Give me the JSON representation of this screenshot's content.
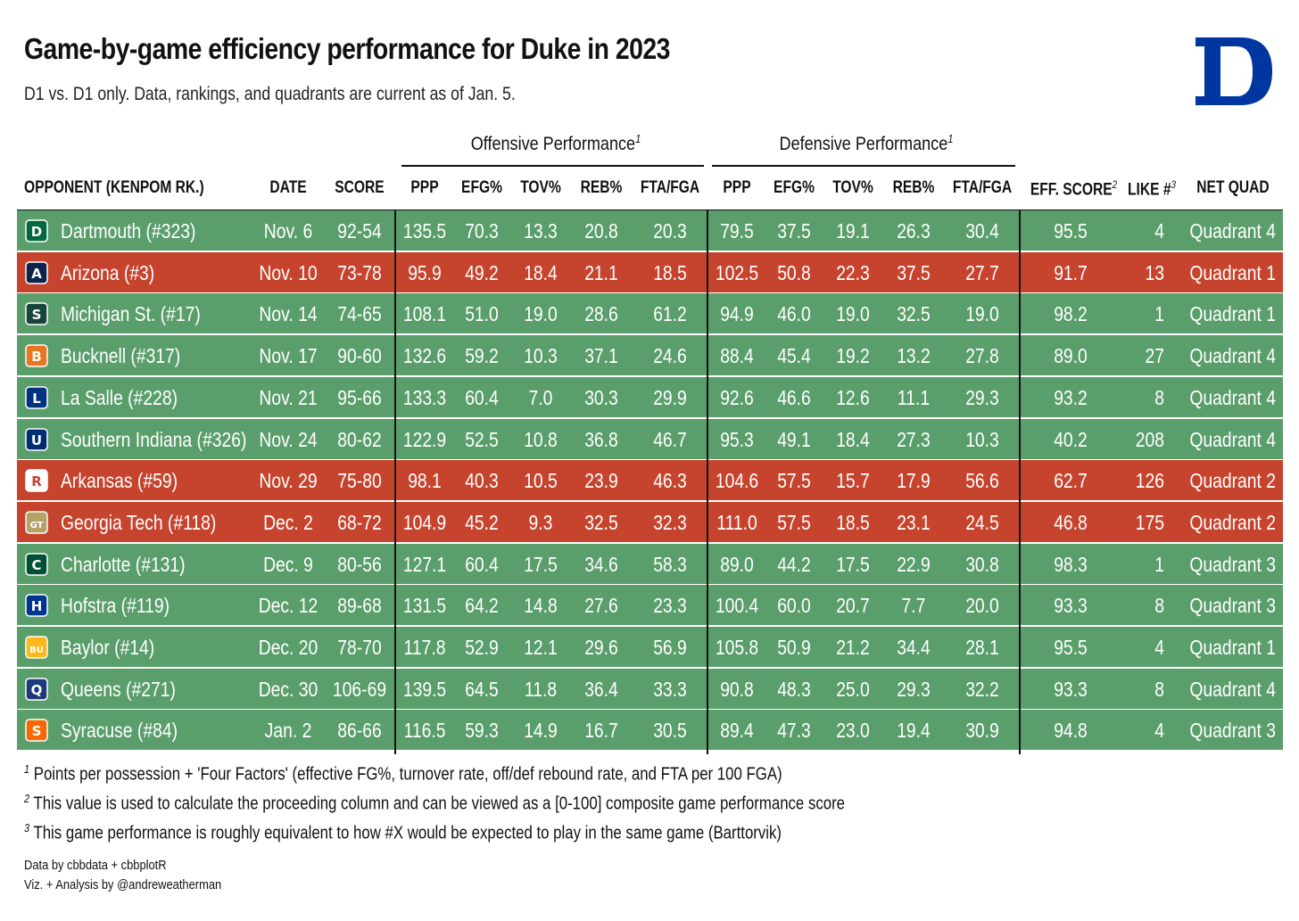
{
  "header": {
    "title": "Game-by-game efficiency performance for Duke in 2023",
    "subtitle": "D1 vs. D1 only. Data, rankings, and quadrants are current as of Jan. 5.",
    "logo_label": "Duke D logo"
  },
  "spanners": {
    "offense": "Offensive Performance",
    "defense": "Defensive Performance",
    "note_mark": "1"
  },
  "columns": {
    "opponent": "OPPONENT (KENPOM RK.)",
    "date": "DATE",
    "score": "SCORE",
    "o_ppp": "PPP",
    "o_efg": "EFG%",
    "o_tov": "TOV%",
    "o_reb": "REB%",
    "o_fta": "FTA/FGA",
    "d_ppp": "PPP",
    "d_efg": "EFG%",
    "d_tov": "TOV%",
    "d_reb": "REB%",
    "d_fta": "FTA/FGA",
    "eff": "EFF. SCORE",
    "eff_mark": "2",
    "like": "LIKE #",
    "like_mark": "3",
    "quad": "NET QUAD"
  },
  "colors": {
    "win": "#5a9e6b",
    "loss": "#c6442e",
    "duke_blue": "#00369f"
  },
  "rows": [
    {
      "opponent": "Dartmouth (#323)",
      "date": "Nov. 6",
      "score": "92-54",
      "o_ppp": "135.5",
      "o_efg": "70.3",
      "o_tov": "13.3",
      "o_reb": "20.8",
      "o_fta": "20.3",
      "d_ppp": "79.5",
      "d_efg": "37.5",
      "d_tov": "19.1",
      "d_reb": "26.3",
      "d_fta": "30.4",
      "eff": "95.5",
      "like": "4",
      "quad": "Quadrant 4",
      "result": "win",
      "logo_icon": "dartmouth-logo",
      "logo_color": "#00693e",
      "logo_glyph": "D"
    },
    {
      "opponent": "Arizona (#3)",
      "date": "Nov. 10",
      "score": "73-78",
      "o_ppp": "95.9",
      "o_efg": "49.2",
      "o_tov": "18.4",
      "o_reb": "21.1",
      "o_fta": "18.5",
      "d_ppp": "102.5",
      "d_efg": "50.8",
      "d_tov": "22.3",
      "d_reb": "37.5",
      "d_fta": "27.7",
      "eff": "91.7",
      "like": "13",
      "quad": "Quadrant 1",
      "result": "loss",
      "logo_icon": "arizona-logo",
      "logo_color": "#0c234b",
      "logo_glyph": "A"
    },
    {
      "opponent": "Michigan St. (#17)",
      "date": "Nov. 14",
      "score": "74-65",
      "o_ppp": "108.1",
      "o_efg": "51.0",
      "o_tov": "19.0",
      "o_reb": "28.6",
      "o_fta": "61.2",
      "d_ppp": "94.9",
      "d_efg": "46.0",
      "d_tov": "19.0",
      "d_reb": "32.5",
      "d_fta": "19.0",
      "eff": "98.2",
      "like": "1",
      "quad": "Quadrant 1",
      "result": "win",
      "logo_icon": "michigan-state-logo",
      "logo_color": "#18453b",
      "logo_glyph": "S"
    },
    {
      "opponent": "Bucknell (#317)",
      "date": "Nov. 17",
      "score": "90-60",
      "o_ppp": "132.6",
      "o_efg": "59.2",
      "o_tov": "10.3",
      "o_reb": "37.1",
      "o_fta": "24.6",
      "d_ppp": "88.4",
      "d_efg": "45.4",
      "d_tov": "19.2",
      "d_reb": "13.2",
      "d_fta": "27.8",
      "eff": "89.0",
      "like": "27",
      "quad": "Quadrant 4",
      "result": "win",
      "logo_icon": "bucknell-logo",
      "logo_color": "#e87722",
      "logo_glyph": "B"
    },
    {
      "opponent": "La Salle (#228)",
      "date": "Nov. 21",
      "score": "95-66",
      "o_ppp": "133.3",
      "o_efg": "60.4",
      "o_tov": "7.0",
      "o_reb": "30.3",
      "o_fta": "29.9",
      "d_ppp": "92.6",
      "d_efg": "46.6",
      "d_tov": "12.6",
      "d_reb": "11.1",
      "d_fta": "29.3",
      "eff": "93.2",
      "like": "8",
      "quad": "Quadrant 4",
      "result": "win",
      "logo_icon": "la-salle-logo",
      "logo_color": "#00337f",
      "logo_glyph": "L"
    },
    {
      "opponent": "Southern Indiana (#326)",
      "date": "Nov. 24",
      "score": "80-62",
      "o_ppp": "122.9",
      "o_efg": "52.5",
      "o_tov": "10.8",
      "o_reb": "36.8",
      "o_fta": "46.7",
      "d_ppp": "95.3",
      "d_efg": "49.1",
      "d_tov": "18.4",
      "d_reb": "27.3",
      "d_fta": "10.3",
      "eff": "40.2",
      "like": "208",
      "quad": "Quadrant 4",
      "result": "win",
      "logo_icon": "southern-indiana-logo",
      "logo_color": "#002d72",
      "logo_glyph": "U"
    },
    {
      "opponent": "Arkansas (#59)",
      "date": "Nov. 29",
      "score": "75-80",
      "o_ppp": "98.1",
      "o_efg": "40.3",
      "o_tov": "10.5",
      "o_reb": "23.9",
      "o_fta": "46.3",
      "d_ppp": "104.6",
      "d_efg": "57.5",
      "d_tov": "15.7",
      "d_reb": "17.9",
      "d_fta": "56.6",
      "eff": "62.7",
      "like": "126",
      "quad": "Quadrant 2",
      "result": "loss",
      "logo_icon": "arkansas-logo",
      "logo_color": "#ffffff",
      "logo_glyph": "R"
    },
    {
      "opponent": "Georgia Tech (#118)",
      "date": "Dec. 2",
      "score": "68-72",
      "o_ppp": "104.9",
      "o_efg": "45.2",
      "o_tov": "9.3",
      "o_reb": "32.5",
      "o_fta": "32.3",
      "d_ppp": "111.0",
      "d_efg": "57.5",
      "d_tov": "18.5",
      "d_reb": "23.1",
      "d_fta": "24.5",
      "eff": "46.8",
      "like": "175",
      "quad": "Quadrant 2",
      "result": "loss",
      "logo_icon": "georgia-tech-logo",
      "logo_color": "#b3a369",
      "logo_glyph": "GT"
    },
    {
      "opponent": "Charlotte (#131)",
      "date": "Dec. 9",
      "score": "80-56",
      "o_ppp": "127.1",
      "o_efg": "60.4",
      "o_tov": "17.5",
      "o_reb": "34.6",
      "o_fta": "58.3",
      "d_ppp": "89.0",
      "d_efg": "44.2",
      "d_tov": "17.5",
      "d_reb": "22.9",
      "d_fta": "30.8",
      "eff": "98.3",
      "like": "1",
      "quad": "Quadrant 3",
      "result": "win",
      "logo_icon": "charlotte-logo",
      "logo_color": "#005035",
      "logo_glyph": "C"
    },
    {
      "opponent": "Hofstra (#119)",
      "date": "Dec. 12",
      "score": "89-68",
      "o_ppp": "131.5",
      "o_efg": "64.2",
      "o_tov": "14.8",
      "o_reb": "27.6",
      "o_fta": "23.3",
      "d_ppp": "100.4",
      "d_efg": "60.0",
      "d_tov": "20.7",
      "d_reb": "7.7",
      "d_fta": "20.0",
      "eff": "93.3",
      "like": "8",
      "quad": "Quadrant 3",
      "result": "win",
      "logo_icon": "hofstra-logo",
      "logo_color": "#003591",
      "logo_glyph": "H"
    },
    {
      "opponent": "Baylor (#14)",
      "date": "Dec. 20",
      "score": "78-70",
      "o_ppp": "117.8",
      "o_efg": "52.9",
      "o_tov": "12.1",
      "o_reb": "29.6",
      "o_fta": "56.9",
      "d_ppp": "105.8",
      "d_efg": "50.9",
      "d_tov": "21.2",
      "d_reb": "34.4",
      "d_fta": "28.1",
      "eff": "95.5",
      "like": "4",
      "quad": "Quadrant 1",
      "result": "win",
      "logo_icon": "baylor-logo",
      "logo_color": "#ffb81c",
      "logo_glyph": "BU"
    },
    {
      "opponent": "Queens (#271)",
      "date": "Dec. 30",
      "score": "106-69",
      "o_ppp": "139.5",
      "o_efg": "64.5",
      "o_tov": "11.8",
      "o_reb": "36.4",
      "o_fta": "33.3",
      "d_ppp": "90.8",
      "d_efg": "48.3",
      "d_tov": "25.0",
      "d_reb": "29.3",
      "d_fta": "32.2",
      "eff": "93.3",
      "like": "8",
      "quad": "Quadrant 4",
      "result": "win",
      "logo_icon": "queens-logo",
      "logo_color": "#1d3a7a",
      "logo_glyph": "Q"
    },
    {
      "opponent": "Syracuse (#84)",
      "date": "Jan. 2",
      "score": "86-66",
      "o_ppp": "116.5",
      "o_efg": "59.3",
      "o_tov": "14.9",
      "o_reb": "16.7",
      "o_fta": "30.5",
      "d_ppp": "89.4",
      "d_efg": "47.3",
      "d_tov": "23.0",
      "d_reb": "19.4",
      "d_fta": "30.9",
      "eff": "94.8",
      "like": "4",
      "quad": "Quadrant 3",
      "result": "win",
      "logo_icon": "syracuse-logo",
      "logo_color": "#f76900",
      "logo_glyph": "S"
    }
  ],
  "footnotes": [
    {
      "mark": "1",
      "text": "Points per possession + 'Four Factors' (effective FG%, turnover rate, off/def rebound rate, and FTA per 100 FGA)"
    },
    {
      "mark": "2",
      "text": "This value is used to calculate the proceeding column and can be viewed as a [0-100] composite game performance score"
    },
    {
      "mark": "3",
      "text": "This game performance is roughly equivalent to how #X would be expected to play in the same game (Barttorvik)"
    }
  ],
  "credits": {
    "line1": "Data by cbbdata + cbbplotR",
    "line2": "Viz. + Analysis by @andreweatherman"
  }
}
